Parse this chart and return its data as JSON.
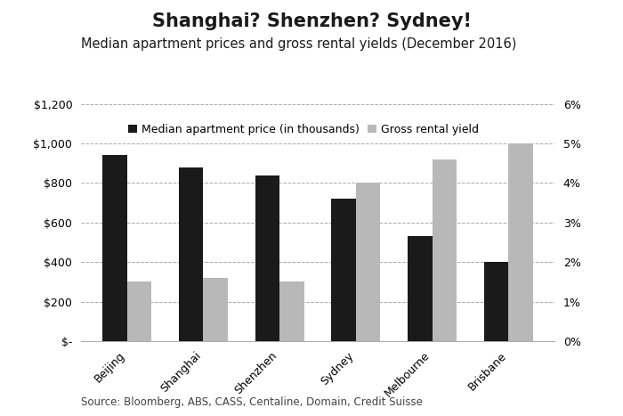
{
  "title": "Shanghai? Shenzhen? Sydney!",
  "subtitle": "Median apartment prices and gross rental yields (December 2016)",
  "source": "Source: Bloomberg, ABS, CASS, Centaline, Domain, Credit Suisse",
  "categories": [
    "Beijing",
    "Shanghai",
    "Shenzhen",
    "Sydney",
    "Melbourne",
    "Brisbane"
  ],
  "prices": [
    940,
    880,
    840,
    720,
    530,
    400
  ],
  "yields": [
    1.5,
    1.6,
    1.5,
    4.0,
    4.6,
    5.0
  ],
  "price_color": "#1a1a1a",
  "yield_color": "#b8b8b8",
  "legend_price": "Median apartment price (in thousands)",
  "legend_yield": "Gross rental yield",
  "ylim_left": [
    0,
    1200
  ],
  "ylim_right": [
    0,
    6
  ],
  "yticks_left": [
    0,
    200,
    400,
    600,
    800,
    1000,
    1200
  ],
  "yticks_right": [
    0,
    1,
    2,
    3,
    4,
    5,
    6
  ],
  "background_color": "#ffffff",
  "bar_width": 0.32,
  "title_fontsize": 15,
  "subtitle_fontsize": 10.5,
  "tick_fontsize": 9,
  "legend_fontsize": 9,
  "source_fontsize": 8.5
}
